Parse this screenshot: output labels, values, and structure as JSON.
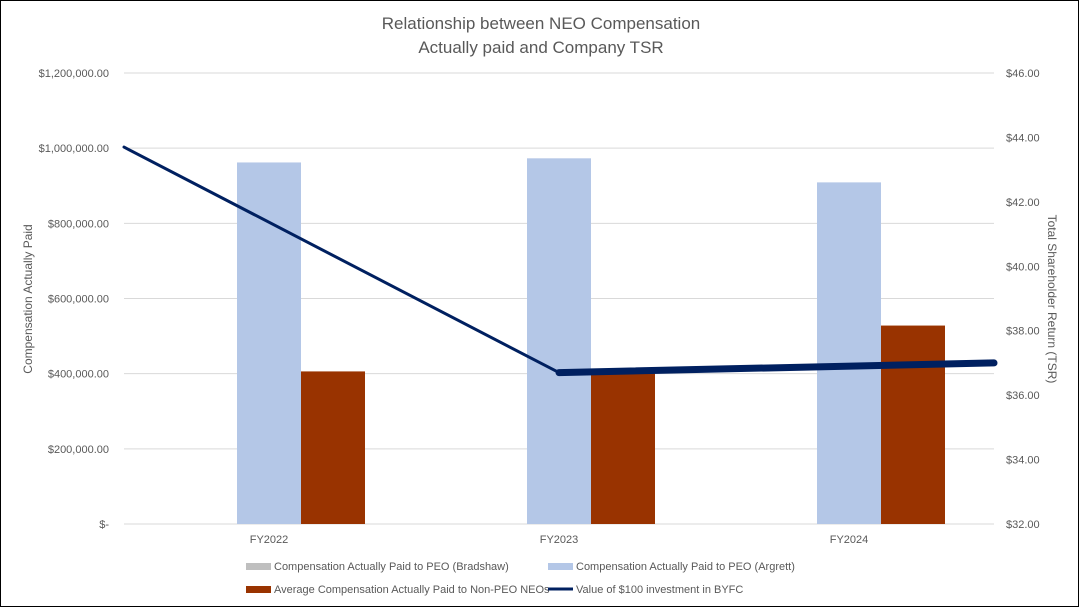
{
  "chart_data": {
    "type": "bar",
    "title_lines": [
      "Relationship between NEO Compensation",
      "Actually paid and Company TSR"
    ],
    "categories": [
      "FY2022",
      "FY2023",
      "FY2024"
    ],
    "ylabel": "Compensation Actually Paid",
    "y2label": "Total Shareholder Return (TSR)",
    "ylim": [
      0,
      1200000
    ],
    "y2lim": [
      32,
      46
    ],
    "yticks": [
      "$-",
      "$200,000.00",
      "$400,000.00",
      "$600,000.00",
      "$800,000.00",
      "$1,000,000.00",
      "$1,200,000.00"
    ],
    "y2ticks": [
      "$32.00",
      "$34.00",
      "$36.00",
      "$38.00",
      "$40.00",
      "$42.00",
      "$44.00",
      "$46.00"
    ],
    "grid": true,
    "legend_position": "bottom",
    "series": [
      {
        "name": "Compensation Actually Paid to PEO (Bradshaw)",
        "kind": "bar",
        "axis": "left",
        "color": "#BFBFBF",
        "values": [
          0,
          0,
          0
        ]
      },
      {
        "name": "Compensation Actually Paid to PEO (Argrett)",
        "kind": "bar",
        "axis": "left",
        "color": "#B4C7E7",
        "values": [
          962000,
          973000,
          909000
        ]
      },
      {
        "name": "Average Compensation Actually Paid to Non-PEO NEOs",
        "kind": "bar",
        "axis": "left",
        "color": "#993300",
        "values": [
          406000,
          406000,
          528000
        ]
      },
      {
        "name": "Value of $100 investment in BYFC",
        "kind": "line",
        "axis": "right",
        "color": "#002060",
        "values": [
          43.7,
          36.7,
          37.0
        ]
      }
    ]
  }
}
